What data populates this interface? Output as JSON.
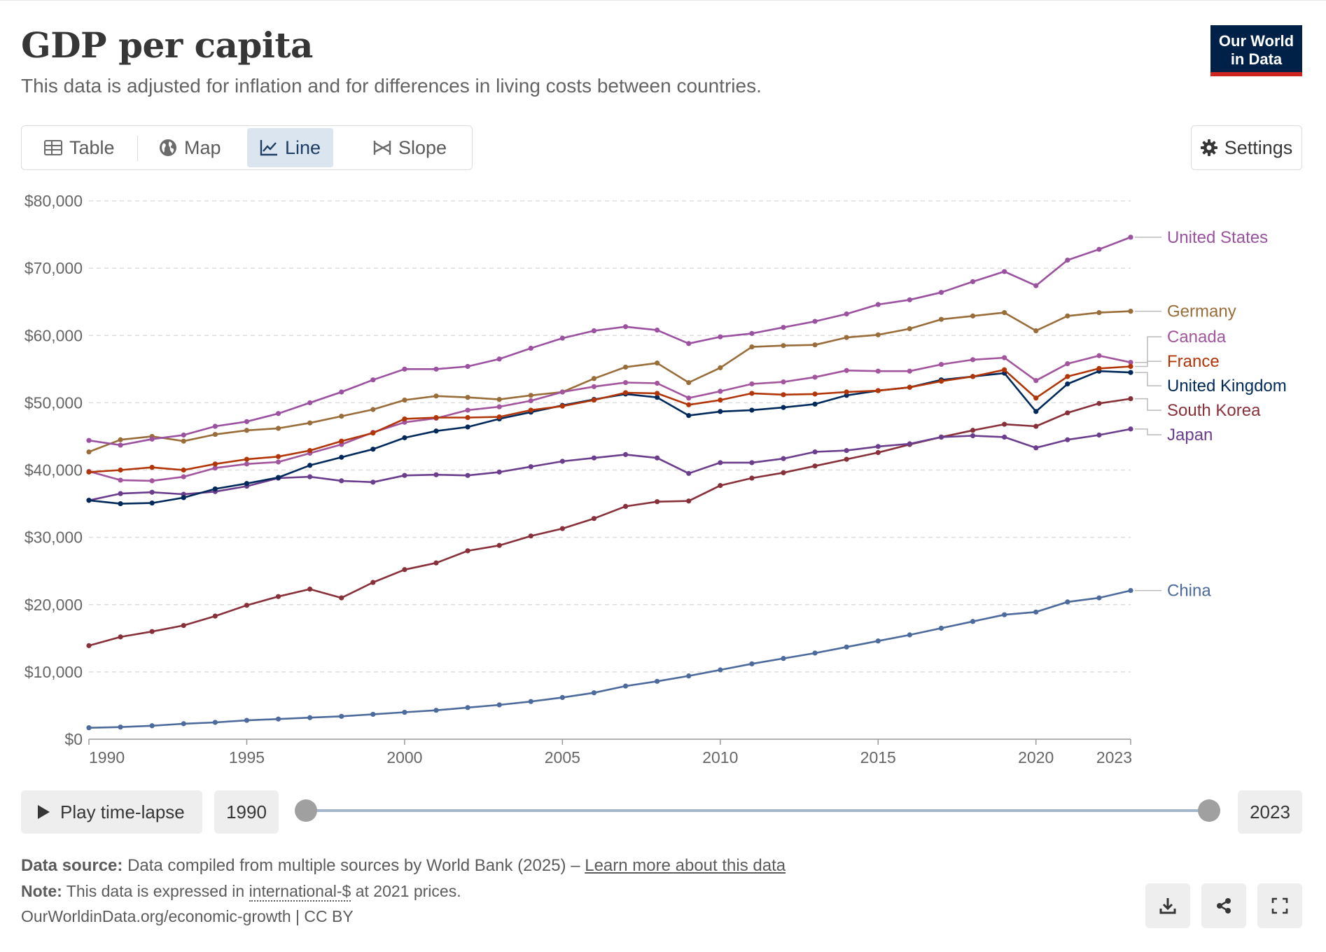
{
  "header": {
    "title": "GDP per capita",
    "subtitle": "This data is adjusted for inflation and for differences in living costs between countries.",
    "logo_line1": "Our World",
    "logo_line2": "in Data"
  },
  "tabs": [
    {
      "label": "Table",
      "icon": "table-icon",
      "active": false
    },
    {
      "label": "Map",
      "icon": "globe-icon",
      "active": false
    },
    {
      "label": "Line",
      "icon": "line-chart-icon",
      "active": true
    },
    {
      "label": "Slope",
      "icon": "slope-icon",
      "active": false
    }
  ],
  "settings_label": "Settings",
  "chart_data": {
    "type": "line",
    "title": "GDP per capita",
    "xlim": [
      1990,
      2023
    ],
    "ylim": [
      0,
      80000
    ],
    "y_ticks": [
      0,
      10000,
      20000,
      30000,
      40000,
      50000,
      60000,
      70000,
      80000
    ],
    "y_tick_labels": [
      "$0",
      "$10,000",
      "$20,000",
      "$30,000",
      "$40,000",
      "$50,000",
      "$60,000",
      "$70,000",
      "$80,000"
    ],
    "x_ticks": [
      1990,
      1995,
      2000,
      2005,
      2010,
      2015,
      2020,
      2023
    ],
    "x_tick_labels": [
      "1990",
      "1995",
      "2000",
      "2005",
      "2010",
      "2015",
      "2020",
      "2023"
    ],
    "grid": "horizontal dashed",
    "legend": "right, inline labels at line ends",
    "x": [
      1990,
      1991,
      1992,
      1993,
      1994,
      1995,
      1996,
      1997,
      1998,
      1999,
      2000,
      2001,
      2002,
      2003,
      2004,
      2005,
      2006,
      2007,
      2008,
      2009,
      2010,
      2011,
      2012,
      2013,
      2014,
      2015,
      2016,
      2017,
      2018,
      2019,
      2020,
      2021,
      2022,
      2023
    ],
    "series": [
      {
        "name": "United States",
        "color": "#9a519f",
        "values": [
          44400,
          43700,
          44600,
          45200,
          46500,
          47200,
          48400,
          50000,
          51600,
          53400,
          55000,
          55000,
          55400,
          56500,
          58100,
          59600,
          60700,
          61300,
          60800,
          58800,
          59800,
          60300,
          61200,
          62100,
          63200,
          64600,
          65300,
          66400,
          68000,
          69500,
          67400,
          71200,
          72800,
          74600
        ]
      },
      {
        "name": "Germany",
        "color": "#996d39",
        "values": [
          42700,
          44500,
          45000,
          44300,
          45300,
          45900,
          46200,
          47000,
          48000,
          49000,
          50400,
          51000,
          50800,
          50500,
          51100,
          51600,
          53600,
          55300,
          55900,
          53000,
          55200,
          58300,
          58500,
          58600,
          59700,
          60100,
          61000,
          62400,
          62900,
          63400,
          60700,
          62900,
          63400,
          63600
        ]
      },
      {
        "name": "Canada",
        "color": "#a2559c",
        "values": [
          39800,
          38500,
          38400,
          39000,
          40300,
          40900,
          41200,
          42500,
          43800,
          45600,
          47100,
          47700,
          48900,
          49400,
          50300,
          51600,
          52400,
          53000,
          52900,
          50700,
          51700,
          52800,
          53100,
          53800,
          54800,
          54700,
          54700,
          55700,
          56400,
          56700,
          53300,
          55800,
          57000,
          56000
        ]
      },
      {
        "name": "France",
        "color": "#b13507",
        "values": [
          39700,
          40000,
          40400,
          40000,
          40900,
          41600,
          42000,
          42900,
          44300,
          45500,
          47600,
          47800,
          47800,
          47900,
          48900,
          49500,
          50400,
          51500,
          51400,
          49700,
          50400,
          51400,
          51200,
          51300,
          51600,
          51800,
          52300,
          53200,
          53900,
          54900,
          50700,
          53900,
          55100,
          55400
        ]
      },
      {
        "name": "United Kingdom",
        "color": "#00295b",
        "values": [
          35500,
          35000,
          35100,
          35900,
          37200,
          38000,
          38900,
          40700,
          41900,
          43100,
          44800,
          45800,
          46400,
          47600,
          48600,
          49600,
          50500,
          51300,
          50800,
          48100,
          48700,
          48900,
          49300,
          49800,
          51100,
          51800,
          52300,
          53400,
          53900,
          54400,
          48700,
          52800,
          54700,
          54500
        ]
      },
      {
        "name": "South Korea",
        "color": "#883039",
        "values": [
          13900,
          15200,
          16000,
          16900,
          18300,
          19900,
          21200,
          22300,
          21000,
          23300,
          25200,
          26200,
          28000,
          28800,
          30200,
          31300,
          32800,
          34600,
          35300,
          35400,
          37700,
          38800,
          39600,
          40600,
          41600,
          42600,
          43800,
          44900,
          45900,
          46800,
          46500,
          48500,
          49900,
          50600
        ]
      },
      {
        "name": "Japan",
        "color": "#6b3d8d",
        "values": [
          35500,
          36500,
          36700,
          36400,
          36800,
          37600,
          38800,
          39000,
          38400,
          38200,
          39200,
          39300,
          39200,
          39700,
          40500,
          41300,
          41800,
          42300,
          41800,
          39500,
          41100,
          41100,
          41700,
          42700,
          42900,
          43500,
          43900,
          44900,
          45100,
          44900,
          43300,
          44500,
          45200,
          46100
        ]
      },
      {
        "name": "China",
        "color": "#4c6a9c",
        "values": [
          1700,
          1800,
          2000,
          2300,
          2500,
          2800,
          3000,
          3200,
          3400,
          3700,
          4000,
          4300,
          4700,
          5100,
          5600,
          6200,
          6900,
          7900,
          8600,
          9400,
          10300,
          11200,
          12000,
          12800,
          13700,
          14600,
          15500,
          16500,
          17500,
          18500,
          18900,
          20400,
          21000,
          22100
        ]
      }
    ]
  },
  "timeline": {
    "play_label": "Play time-lapse",
    "start_year": "1990",
    "end_year": "2023",
    "start_fraction": 0,
    "end_fraction": 1
  },
  "footer": {
    "source_label": "Data source:",
    "source_text": "Data compiled from multiple sources by World Bank (2025) –",
    "source_link": "Learn more about this data",
    "note_label": "Note:",
    "note_pre": "This data is expressed in",
    "note_link": "international-$",
    "note_post": "at 2021 prices.",
    "url": "OurWorldinData.org/economic-growth | CC BY"
  }
}
